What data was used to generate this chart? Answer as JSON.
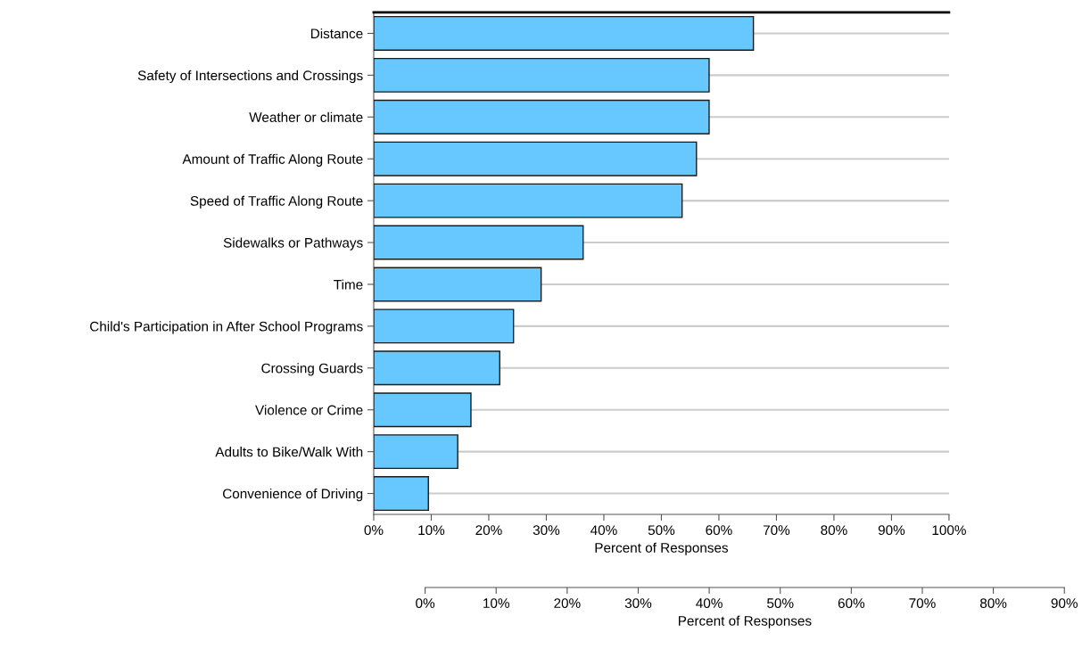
{
  "chart_data": {
    "type": "bar",
    "orientation": "horizontal",
    "categories": [
      "Distance",
      "Safety of Intersections and Crossings",
      "Weather or climate",
      "Amount of Traffic Along Route",
      "Speed of Traffic Along Route",
      "Sidewalks or Pathways",
      "Time",
      "Child's Participation in After School Programs",
      "Crossing Guards",
      "Violence or Crime",
      "Adults to Bike/Walk With",
      "Convenience of Driving"
    ],
    "values": [
      66,
      58.3,
      58.3,
      56.1,
      53.6,
      36.4,
      29.1,
      24.3,
      21.9,
      16.9,
      14.6,
      9.5
    ],
    "color": "#66c8ff",
    "xlabel": "Percent of Responses",
    "xlim": [
      0,
      100
    ],
    "xticks": [
      {
        "value": 0,
        "label": "0%"
      },
      {
        "value": 10,
        "label": "10%"
      },
      {
        "value": 20,
        "label": "20%"
      },
      {
        "value": 30,
        "label": "30%"
      },
      {
        "value": 40,
        "label": "40%"
      },
      {
        "value": 50,
        "label": "50%"
      },
      {
        "value": 60,
        "label": "60%"
      },
      {
        "value": 70,
        "label": "70%"
      },
      {
        "value": 80,
        "label": "80%"
      },
      {
        "value": 90,
        "label": "90%"
      },
      {
        "value": 100,
        "label": "100%"
      }
    ],
    "x2label": "Percent of Responses",
    "x2lim": [
      0,
      90
    ],
    "x2ticks": [
      {
        "value": 0,
        "label": "0%"
      },
      {
        "value": 10,
        "label": "10%"
      },
      {
        "value": 20,
        "label": "20%"
      },
      {
        "value": 30,
        "label": "30%"
      },
      {
        "value": 40,
        "label": "40%"
      },
      {
        "value": 50,
        "label": "50%"
      },
      {
        "value": 60,
        "label": "60%"
      },
      {
        "value": 70,
        "label": "70%"
      },
      {
        "value": 80,
        "label": "80%"
      },
      {
        "value": 90,
        "label": "90%"
      }
    ],
    "grid": "y",
    "legend": false
  }
}
